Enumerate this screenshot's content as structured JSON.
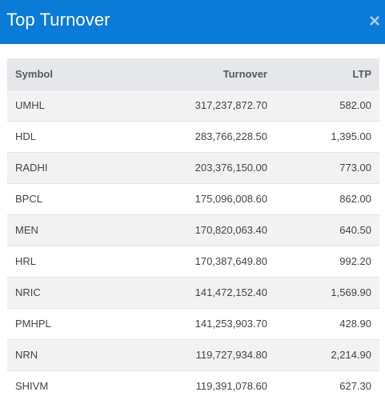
{
  "modal": {
    "title": "Top Turnover",
    "close_label": "×"
  },
  "table": {
    "columns": [
      "Symbol",
      "Turnover",
      "LTP"
    ],
    "rows": [
      {
        "symbol": "UMHL",
        "turnover": "317,237,872.70",
        "ltp": "582.00"
      },
      {
        "symbol": "HDL",
        "turnover": "283,766,228.50",
        "ltp": "1,395.00"
      },
      {
        "symbol": "RADHI",
        "turnover": "203,376,150.00",
        "ltp": "773.00"
      },
      {
        "symbol": "BPCL",
        "turnover": "175,096,008.60",
        "ltp": "862.00"
      },
      {
        "symbol": "MEN",
        "turnover": "170,820,063.40",
        "ltp": "640.50"
      },
      {
        "symbol": "HRL",
        "turnover": "170,387,649.80",
        "ltp": "992.20"
      },
      {
        "symbol": "NRIC",
        "turnover": "141,472,152.40",
        "ltp": "1,569.90"
      },
      {
        "symbol": "PMHPL",
        "turnover": "141,253,903.70",
        "ltp": "428.90"
      },
      {
        "symbol": "NRN",
        "turnover": "119,727,934.80",
        "ltp": "2,214.90"
      },
      {
        "symbol": "SHIVM",
        "turnover": "119,391,078.60",
        "ltp": "627.30"
      }
    ]
  },
  "colors": {
    "header_bg": "#0a7bd6",
    "table_header_bg": "#e6e7eb",
    "row_alt_bg": "#f2f2f2"
  }
}
